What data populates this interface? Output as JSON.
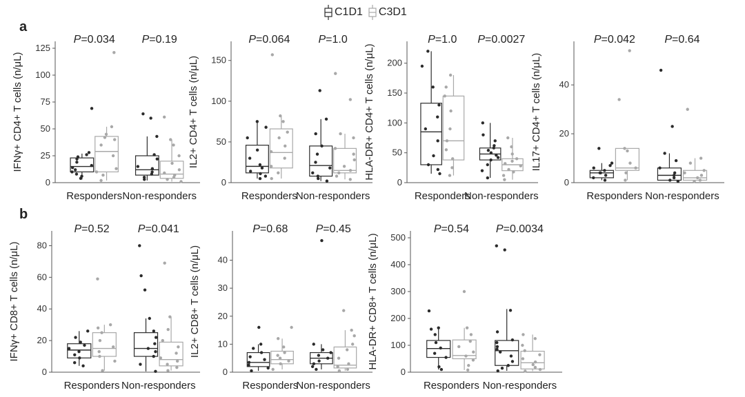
{
  "legend": {
    "c1d1": "C1D1",
    "c3d1": "C3D1"
  },
  "panel_labels": {
    "a": "a",
    "b": "b"
  },
  "colors": {
    "c1d1": "#2b2b2b",
    "c3d1": "#a8a8a8",
    "axis": "#555555"
  },
  "chart_data": [
    {
      "type": "box",
      "row": "a",
      "ylabel": "IFNγ+ CD4+ T cells (n/μL)",
      "ylim": [
        0,
        125
      ],
      "yticks": [
        0,
        25,
        50,
        75,
        100,
        125
      ],
      "categories": [
        "Responders",
        "Non-responders"
      ],
      "p_values": [
        {
          "prefix": "P",
          "text": "=0.034"
        },
        {
          "prefix": "P",
          "text": "=0.19"
        }
      ],
      "series": [
        {
          "name": "C1D1",
          "boxes": [
            {
              "whisker_low": 3,
              "q1": 10,
              "median": 15,
              "q3": 23,
              "whisker_high": 27,
              "points": [
                4,
                6,
                8,
                10,
                12,
                14,
                16,
                19,
                22,
                24,
                26,
                28,
                69
              ]
            },
            {
              "whisker_low": 2,
              "q1": 7,
              "median": 12,
              "q3": 25,
              "whisker_high": 43,
              "points": [
                3,
                5,
                8,
                10,
                13,
                15,
                22,
                26,
                43,
                60,
                64
              ]
            }
          ]
        },
        {
          "name": "C3D1",
          "boxes": [
            {
              "whisker_low": 2,
              "q1": 10,
              "median": 29,
              "q3": 43,
              "whisker_high": 52,
              "points": [
                2,
                7,
                10,
                13,
                25,
                35,
                40,
                42,
                45,
                52,
                121
              ]
            },
            {
              "whisker_low": 1,
              "q1": 4,
              "median": 8,
              "q3": 20,
              "whisker_high": 40,
              "points": [
                1,
                3,
                5,
                7,
                9,
                12,
                18,
                25,
                35,
                40,
                61
              ]
            }
          ]
        }
      ]
    },
    {
      "type": "box",
      "row": "a",
      "ylabel": "IL2+ CD4+ T cells (n/μL)",
      "ylim": [
        0,
        165
      ],
      "yticks": [
        0,
        50,
        100,
        150
      ],
      "categories": [
        "Responders",
        "Non-responders"
      ],
      "p_values": [
        {
          "prefix": "P",
          "text": "=0.064"
        },
        {
          "prefix": "P",
          "text": "=1.0"
        }
      ],
      "series": [
        {
          "name": "C1D1",
          "boxes": [
            {
              "whisker_low": 5,
              "q1": 12,
              "median": 20,
              "q3": 46,
              "whisker_high": 75,
              "points": [
                5,
                8,
                11,
                14,
                18,
                22,
                30,
                40,
                55,
                68,
                75
              ]
            },
            {
              "whisker_low": 2,
              "q1": 8,
              "median": 21,
              "q3": 45,
              "whisker_high": 78,
              "points": [
                2,
                5,
                8,
                12,
                18,
                25,
                35,
                45,
                60,
                78,
                113
              ]
            }
          ]
        },
        {
          "name": "C3D1",
          "boxes": [
            {
              "whisker_low": 5,
              "q1": 18,
              "median": 37,
              "q3": 66,
              "whisker_high": 82,
              "points": [
                5,
                12,
                20,
                30,
                38,
                45,
                55,
                62,
                75,
                82,
                157
              ]
            },
            {
              "whisker_low": 4,
              "q1": 12,
              "median": 15,
              "q3": 42,
              "whisker_high": 60,
              "points": [
                4,
                8,
                12,
                15,
                20,
                28,
                35,
                42,
                55,
                60,
                102,
                134
              ]
            }
          ]
        }
      ]
    },
    {
      "type": "box",
      "row": "a",
      "ylabel": "HLA-DR+ CD4+ T cells (n/μL)",
      "ylim": [
        0,
        225
      ],
      "yticks": [
        0,
        50,
        100,
        150,
        200
      ],
      "categories": [
        "Responders",
        "Non-responders"
      ],
      "p_values": [
        {
          "prefix": "P",
          "text": "=1.0"
        },
        {
          "prefix": "P",
          "text": "=0.0027"
        }
      ],
      "series": [
        {
          "name": "C1D1",
          "boxes": [
            {
              "whisker_low": 15,
              "q1": 30,
              "median": 85,
              "q3": 133,
              "whisker_high": 220,
              "points": [
                15,
                22,
                30,
                45,
                70,
                90,
                110,
                130,
                160,
                195,
                220
              ]
            },
            {
              "whisker_low": 8,
              "q1": 38,
              "median": 48,
              "q3": 58,
              "whisker_high": 100,
              "points": [
                8,
                20,
                30,
                38,
                42,
                46,
                50,
                54,
                58,
                62,
                70,
                80,
                100
              ]
            }
          ]
        },
        {
          "name": "C3D1",
          "boxes": [
            {
              "whisker_low": 12,
              "q1": 38,
              "median": 70,
              "q3": 145,
              "whisker_high": 180,
              "points": [
                12,
                25,
                40,
                55,
                70,
                90,
                120,
                145,
                160,
                180
              ]
            },
            {
              "whisker_low": 5,
              "q1": 20,
              "median": 30,
              "q3": 40,
              "whisker_high": 75,
              "points": [
                5,
                12,
                18,
                22,
                28,
                32,
                36,
                40,
                48,
                60,
                75
              ]
            }
          ]
        }
      ]
    },
    {
      "type": "box",
      "row": "a",
      "ylabel": "IL17+ CD4+ T cells (n/μL)",
      "ylim": [
        0,
        55
      ],
      "yticks": [
        0,
        20,
        40
      ],
      "categories": [
        "Responders",
        "Non-responders"
      ],
      "p_values": [
        {
          "prefix": "P",
          "text": "=0.042"
        },
        {
          "prefix": "P",
          "text": "=0.64"
        }
      ],
      "series": [
        {
          "name": "C1D1",
          "boxes": [
            {
              "whisker_low": 1,
              "q1": 2,
              "median": 4,
              "q3": 5,
              "whisker_high": 8,
              "points": [
                1,
                2,
                3,
                4,
                4,
                5,
                6,
                7,
                8,
                14
              ]
            },
            {
              "whisker_low": 0.5,
              "q1": 1,
              "median": 3,
              "q3": 6,
              "whisker_high": 12,
              "points": [
                0.5,
                1,
                2,
                3,
                4,
                6,
                9,
                12,
                23,
                46
              ]
            }
          ]
        },
        {
          "name": "C3D1",
          "boxes": [
            {
              "whisker_low": 1,
              "q1": 5,
              "median": 6,
              "q3": 14,
              "whisker_high": 14,
              "points": [
                1,
                4,
                6,
                8,
                13,
                14,
                34,
                54
              ]
            },
            {
              "whisker_low": 0.5,
              "q1": 1,
              "median": 2,
              "q3": 5,
              "whisker_high": 10,
              "points": [
                0.5,
                1,
                2,
                3,
                4,
                5,
                8,
                10,
                30
              ]
            }
          ]
        }
      ]
    },
    {
      "type": "box",
      "row": "b",
      "ylabel": "IFNγ+ CD8+ T cells (n/μL)",
      "ylim": [
        0,
        85
      ],
      "yticks": [
        0,
        20,
        40,
        60,
        80
      ],
      "categories": [
        "Responders",
        "Non-responders"
      ],
      "p_values": [
        {
          "prefix": "P",
          "text": "=0.52"
        },
        {
          "prefix": "P",
          "text": "=0.041"
        }
      ],
      "series": [
        {
          "name": "C1D1",
          "boxes": [
            {
              "whisker_low": 4,
              "q1": 9,
              "median": 14,
              "q3": 18,
              "whisker_high": 26,
              "points": [
                4,
                6,
                9,
                11,
                13,
                15,
                17,
                19,
                22,
                26
              ]
            },
            {
              "whisker_low": 0.5,
              "q1": 10,
              "median": 15,
              "q3": 25,
              "whisker_high": 34,
              "points": [
                0.5,
                5,
                10,
                13,
                15,
                18,
                22,
                26,
                34,
                52,
                61,
                80
              ]
            }
          ]
        },
        {
          "name": "C3D1",
          "boxes": [
            {
              "whisker_low": 1,
              "q1": 10,
              "median": 15,
              "q3": 25,
              "whisker_high": 30,
              "points": [
                1,
                7,
                10,
                13,
                16,
                20,
                25,
                28,
                30,
                59
              ]
            },
            {
              "whisker_low": 1,
              "q1": 4,
              "median": 8,
              "q3": 19,
              "whisker_high": 35,
              "points": [
                1,
                3,
                5,
                7,
                9,
                12,
                16,
                20,
                27,
                35,
                69
              ]
            }
          ]
        }
      ]
    },
    {
      "type": "box",
      "row": "b",
      "ylabel": "IL2+ CD8+ T cells (n/μL)",
      "ylim": [
        0,
        48
      ],
      "yticks": [
        0,
        10,
        20,
        30,
        40
      ],
      "categories": [
        "Responders",
        "Non-responders"
      ],
      "p_values": [
        {
          "prefix": "P",
          "text": "=0.68"
        },
        {
          "prefix": "P",
          "text": "=0.45"
        }
      ],
      "series": [
        {
          "name": "C1D1",
          "boxes": [
            {
              "whisker_low": 0.5,
              "q1": 2,
              "median": 3.5,
              "q3": 7,
              "whisker_high": 10,
              "points": [
                0.5,
                1.5,
                2.5,
                3.5,
                4.5,
                5.5,
                7,
                8.5,
                10,
                16
              ]
            },
            {
              "whisker_low": 1,
              "q1": 3,
              "median": 5,
              "q3": 7,
              "whisker_high": 10,
              "points": [
                1,
                2,
                3,
                4,
                5,
                6,
                7,
                8,
                10,
                47
              ]
            }
          ]
        },
        {
          "name": "C3D1",
          "boxes": [
            {
              "whisker_low": 1,
              "q1": 3,
              "median": 4.5,
              "q3": 7.5,
              "whisker_high": 12,
              "points": [
                1,
                3,
                4,
                5,
                6,
                7,
                9,
                12,
                16
              ]
            },
            {
              "whisker_low": 0.5,
              "q1": 1.5,
              "median": 2.5,
              "q3": 9,
              "whisker_high": 15,
              "points": [
                0.5,
                1,
                2,
                3,
                5,
                8,
                10,
                13,
                15,
                22
              ]
            }
          ]
        }
      ]
    },
    {
      "type": "box",
      "row": "b",
      "ylabel": "HLA-DR+ CD8+ T cells (n/μL)",
      "ylim": [
        0,
        500
      ],
      "yticks": [
        0,
        100,
        200,
        300,
        400,
        500
      ],
      "categories": [
        "Responders",
        "Non-responders"
      ],
      "p_values": [
        {
          "prefix": "P",
          "text": "=0.54"
        },
        {
          "prefix": "P",
          "text": "=0.0034"
        }
      ],
      "series": [
        {
          "name": "C1D1",
          "boxes": [
            {
              "whisker_low": 10,
              "q1": 55,
              "median": 88,
              "q3": 118,
              "whisker_high": 165,
              "points": [
                10,
                20,
                55,
                70,
                90,
                110,
                140,
                160,
                165,
                228
              ]
            },
            {
              "whisker_low": 5,
              "q1": 25,
              "median": 80,
              "q3": 118,
              "whisker_high": 235,
              "points": [
                5,
                15,
                25,
                40,
                60,
                75,
                85,
                95,
                110,
                120,
                150,
                230,
                455,
                470
              ]
            }
          ]
        },
        {
          "name": "C3D1",
          "boxes": [
            {
              "whisker_low": 8,
              "q1": 50,
              "median": 62,
              "q3": 120,
              "whisker_high": 165,
              "points": [
                8,
                25,
                45,
                60,
                75,
                95,
                115,
                140,
                165,
                300
              ]
            },
            {
              "whisker_low": 4,
              "q1": 12,
              "median": 35,
              "q3": 78,
              "whisker_high": 140,
              "points": [
                4,
                10,
                18,
                28,
                38,
                50,
                65,
                80,
                100,
                125,
                140
              ]
            }
          ]
        }
      ]
    }
  ]
}
